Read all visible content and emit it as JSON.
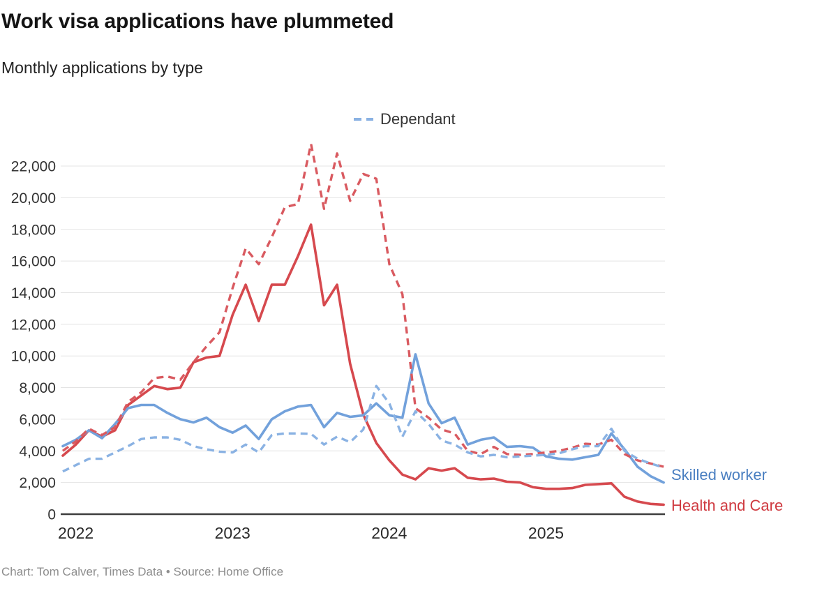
{
  "header": {
    "title": "Work visa applications have plummeted",
    "subtitle": "Monthly applications by type"
  },
  "legend": {
    "label": "Dependant"
  },
  "series_labels": {
    "skilled": "Skilled worker",
    "health": "Health and Care"
  },
  "footer": {
    "credit": "Chart: Tom Calver, Times Data • Source: Home Office"
  },
  "colors": {
    "skilled_worker": "#72a1db",
    "skilled_dependant": "#8ab2e3",
    "health_care": "#d6494e",
    "health_care_dependant": "#d95a60",
    "grid": "#e4e4e4",
    "axis": "#3d3d3d"
  },
  "chart_data": {
    "type": "line",
    "title": "Work visa applications have plummeted",
    "subtitle": "Monthly applications by type",
    "x_unit": "month",
    "x_start": "2022-01",
    "x_end": "2025-11",
    "x_ticks": [
      {
        "index": 0,
        "label": "2022"
      },
      {
        "index": 12,
        "label": "2023"
      },
      {
        "index": 24,
        "label": "2024"
      },
      {
        "index": 36,
        "label": "2025"
      }
    ],
    "y_ticks": [
      0,
      2000,
      4000,
      6000,
      8000,
      10000,
      12000,
      14000,
      16000,
      18000,
      20000,
      22000
    ],
    "ylim": [
      0,
      23700
    ],
    "grid": "horizontal",
    "legend_position": "top-center",
    "series": [
      {
        "name": "Health and Care",
        "slug": "health-and-care",
        "style": "solid",
        "color": "#d6494e",
        "values": [
          3700,
          4400,
          5300,
          4900,
          5300,
          6900,
          7500,
          8100,
          7900,
          8000,
          9600,
          9900,
          10000,
          12600,
          14500,
          12200,
          14500,
          14500,
          16300,
          18300,
          13200,
          14500,
          9500,
          6300,
          4500,
          3400,
          2500,
          2200,
          2900,
          2750,
          2900,
          2300,
          2200,
          2250,
          2050,
          2000,
          1700,
          1600,
          1600,
          1650,
          1850,
          1900,
          1950,
          1100,
          800,
          650,
          600
        ]
      },
      {
        "name": "Skilled worker",
        "slug": "skilled-worker",
        "style": "solid",
        "color": "#72a1db",
        "values": [
          4300,
          4700,
          5300,
          4800,
          5700,
          6700,
          6900,
          6900,
          6400,
          6000,
          5800,
          6100,
          5500,
          5150,
          5600,
          4750,
          6000,
          6500,
          6800,
          6900,
          5500,
          6400,
          6150,
          6250,
          7000,
          6250,
          6100,
          10100,
          7000,
          5750,
          6100,
          4400,
          4700,
          4850,
          4250,
          4300,
          4200,
          3650,
          3500,
          3450,
          3600,
          3750,
          5100,
          4100,
          3000,
          2400,
          2000
        ]
      },
      {
        "name": "Health and Care dependant",
        "slug": "health-and-care-dependant",
        "style": "dashed",
        "color": "#d95a60",
        "values": [
          4000,
          4600,
          5400,
          5000,
          5500,
          7100,
          7700,
          8600,
          8700,
          8500,
          9600,
          10600,
          11500,
          14300,
          16800,
          15800,
          17500,
          19400,
          19600,
          23400,
          19300,
          22800,
          19800,
          21500,
          21200,
          15800,
          13900,
          6700,
          6100,
          5350,
          5100,
          4000,
          3800,
          4250,
          3800,
          3750,
          3800,
          3900,
          4000,
          4200,
          4450,
          4400,
          4700,
          3800,
          3400,
          3200,
          3000
        ]
      },
      {
        "name": "Skilled worker dependant",
        "slug": "skilled-worker-dependant",
        "style": "dashed",
        "color": "#8ab2e3",
        "values": [
          2700,
          3100,
          3500,
          3500,
          3900,
          4300,
          4750,
          4850,
          4850,
          4700,
          4300,
          4100,
          3950,
          3900,
          4400,
          3900,
          5000,
          5100,
          5100,
          5080,
          4400,
          4900,
          4550,
          5350,
          8100,
          7000,
          4900,
          6500,
          5700,
          4650,
          4400,
          3900,
          3650,
          3750,
          3600,
          3650,
          3700,
          3750,
          3850,
          4100,
          4300,
          4300,
          5400,
          4000,
          3500,
          3200,
          2950
        ]
      }
    ]
  }
}
